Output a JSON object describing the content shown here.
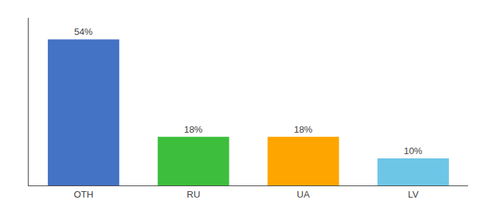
{
  "chart_data": {
    "type": "bar",
    "categories": [
      "OTH",
      "RU",
      "UA",
      "LV"
    ],
    "values": [
      54,
      18,
      18,
      10
    ],
    "value_labels": [
      "54%",
      "18%",
      "18%",
      "10%"
    ],
    "colors": [
      "#4472C4",
      "#3DBE3D",
      "#FFA500",
      "#6EC6E6"
    ],
    "ylim": [
      0,
      62
    ],
    "grid": false,
    "data_labels": true,
    "tick_labels": "x"
  }
}
